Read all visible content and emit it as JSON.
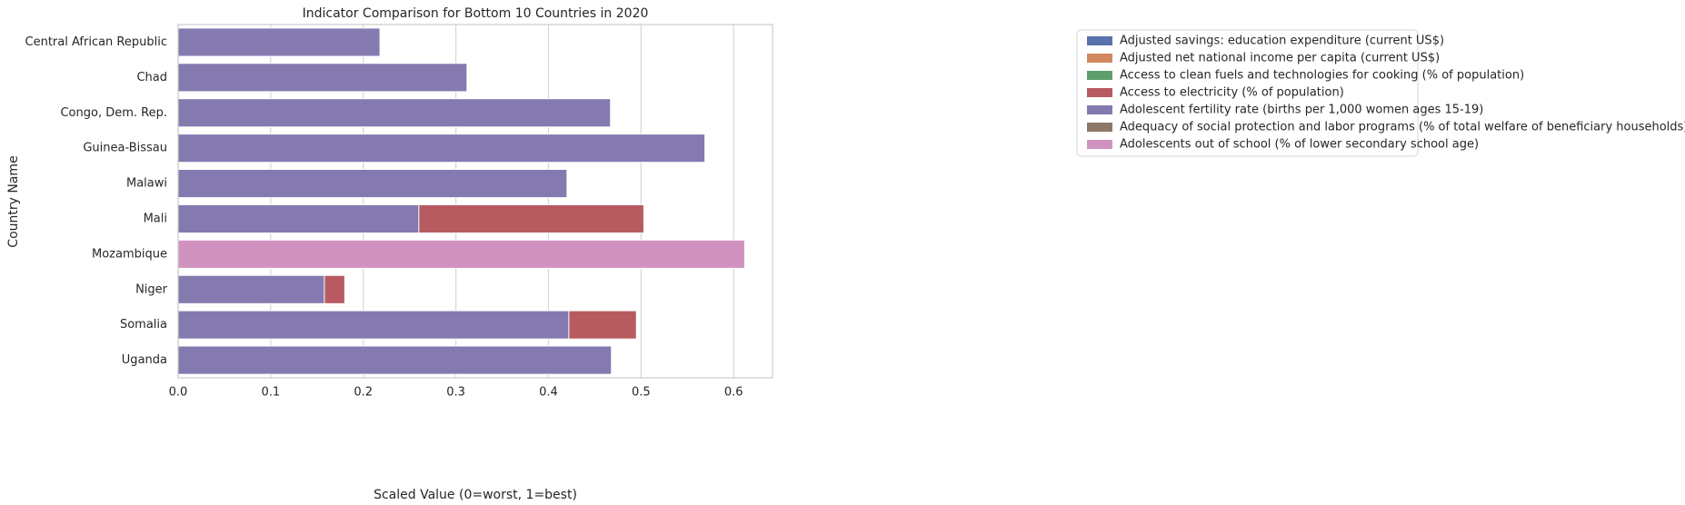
{
  "chart_data": {
    "type": "bar",
    "orientation": "horizontal",
    "overlap": true,
    "title": "Indicator Comparison for Bottom 10 Countries in 2020",
    "x_label": "Scaled Value (0=worst, 1=best)",
    "y_label": "Country Name",
    "categories": [
      "Central African Republic",
      "Chad",
      "Congo, Dem. Rep.",
      "Guinea-Bissau",
      "Malawi",
      "Mali",
      "Mozambique",
      "Niger",
      "Somalia",
      "Uganda"
    ],
    "series": [
      {
        "name": "Adjusted savings: education expenditure (current US$)",
        "color": "#5a72aa",
        "values": [
          null,
          null,
          null,
          null,
          null,
          null,
          null,
          null,
          null,
          null
        ]
      },
      {
        "name": "Adjusted net national income per capita (current US$)",
        "color": "#d1885f",
        "values": [
          null,
          null,
          null,
          null,
          null,
          null,
          null,
          null,
          null,
          null
        ]
      },
      {
        "name": "Access to clean fuels and technologies for cooking (% of population)",
        "color": "#5d9e6c",
        "values": [
          null,
          null,
          null,
          null,
          null,
          null,
          null,
          null,
          null,
          null
        ]
      },
      {
        "name": "Access to electricity (% of population)",
        "color": "#b75b60",
        "values": [
          null,
          null,
          null,
          null,
          null,
          0.503,
          null,
          0.18,
          0.495,
          null
        ]
      },
      {
        "name": "Adolescent fertility rate (births per 1,000 women ages 15-19)",
        "color": "#857ab0",
        "values": [
          0.218,
          0.312,
          0.467,
          0.569,
          0.42,
          0.26,
          null,
          0.158,
          0.422,
          0.468
        ]
      },
      {
        "name": "Adequacy of social protection and labor programs (% of total welfare of beneficiary households)",
        "color": "#8d7866",
        "values": [
          null,
          null,
          null,
          null,
          null,
          null,
          null,
          null,
          null,
          null
        ]
      },
      {
        "name": "Adolescents out of school (% of lower secondary school age)",
        "color": "#d093c0",
        "values": [
          null,
          null,
          null,
          null,
          null,
          null,
          0.612,
          null,
          null,
          null
        ]
      }
    ],
    "xlim": [
      0,
      0.642
    ],
    "xticks": [
      {
        "value": 0,
        "label": "0.0"
      },
      0.1,
      0.2,
      0.3,
      0.4,
      0.5,
      0.6
    ],
    "grid": true,
    "legend": "outside upper right"
  }
}
